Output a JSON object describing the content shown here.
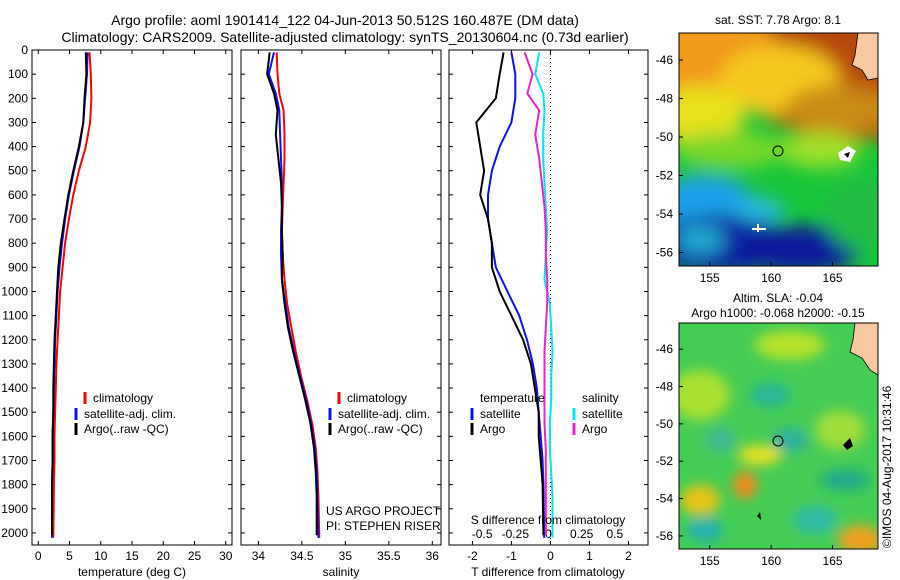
{
  "header": {
    "title_line1": "Argo profile: aoml 1901414_122 04-Jun-2013 50.512S 160.487E (DM data)",
    "title_line2": "Climatology: CARS2009. Satellite-adjusted climatology: synTS_20130604.nc (0.73d earlier)"
  },
  "credits": {
    "project": "US ARGO PROJECT",
    "pi": "PI: STEPHEN RISER",
    "stamp": "©IMOS 04-Aug-2017 10:31:46"
  },
  "colors": {
    "climatology": "#ff0000",
    "satellite": "#1010ee",
    "argo": "#000000",
    "s_satellite": "#00e5ee",
    "s_argo": "#ee22cc"
  },
  "chart_data": [
    {
      "type": "line",
      "id": "temperature",
      "xlabel": "temperature (deg C)",
      "ylabel": "",
      "xlim": [
        -1,
        31
      ],
      "ylim": [
        2050,
        0
      ],
      "xticks": [
        "0",
        "5",
        "10",
        "15",
        "20",
        "25",
        "30"
      ],
      "yticks": [
        "0",
        "100",
        "200",
        "300",
        "400",
        "500",
        "600",
        "700",
        "800",
        "900",
        "1000",
        "1100",
        "1200",
        "1300",
        "1400",
        "1500",
        "1600",
        "1700",
        "1800",
        "1900",
        "2000"
      ],
      "legend": [
        "climatology",
        "satellite-adj. clim.",
        "Argo(..raw -QC)"
      ],
      "series": [
        {
          "name": "climatology",
          "color": "#ff0000",
          "x": [
            8.2,
            8.4,
            8.5,
            8.3,
            7.6,
            6.5,
            5.6,
            4.9,
            4.3,
            3.9,
            3.5,
            3.3,
            3.1,
            2.9,
            2.8,
            2.7,
            2.6,
            2.6,
            2.5,
            2.4
          ],
          "y": [
            10,
            100,
            200,
            300,
            400,
            500,
            600,
            700,
            800,
            900,
            1000,
            1100,
            1200,
            1300,
            1400,
            1500,
            1600,
            1700,
            1800,
            2020
          ]
        },
        {
          "name": "satellite-adj. clim.",
          "color": "#1010ee",
          "x": [
            7.9,
            7.8,
            7.5,
            7.2,
            6.6,
            5.7,
            4.9,
            4.3,
            3.8,
            3.4,
            3.1,
            2.9,
            2.7,
            2.6,
            2.5,
            2.4,
            2.3,
            2.3,
            2.2,
            2.2
          ],
          "y": [
            10,
            100,
            200,
            300,
            400,
            500,
            600,
            700,
            800,
            900,
            1000,
            1100,
            1200,
            1300,
            1400,
            1500,
            1600,
            1700,
            1800,
            2020
          ]
        },
        {
          "name": "Argo(..raw -QC)",
          "color": "#000000",
          "x": [
            7.6,
            7.7,
            7.4,
            7.2,
            6.5,
            5.6,
            4.8,
            4.2,
            3.6,
            3.2,
            3.0,
            2.8,
            2.6,
            2.5,
            2.4,
            2.4,
            2.3,
            2.3,
            2.2,
            2.2
          ],
          "y": [
            10,
            100,
            200,
            300,
            400,
            500,
            600,
            700,
            800,
            900,
            1000,
            1100,
            1200,
            1300,
            1400,
            1500,
            1600,
            1700,
            1800,
            2010
          ]
        }
      ]
    },
    {
      "type": "line",
      "id": "salinity",
      "xlabel": "salinity",
      "xlim": [
        33.8,
        36.1
      ],
      "ylim": [
        2050,
        0
      ],
      "xticks": [
        "34",
        "34.5",
        "35",
        "35.5",
        "36"
      ],
      "legend": [
        "climatology",
        "satellite-adj. clim.",
        "Argo(..raw -QC)"
      ],
      "series": [
        {
          "name": "climatology",
          "color": "#ff0000",
          "x": [
            34.21,
            34.22,
            34.24,
            34.29,
            34.3,
            34.3,
            34.29,
            34.28,
            34.27,
            34.28,
            34.3,
            34.33,
            34.38,
            34.43,
            34.49,
            34.56,
            34.62,
            34.66,
            34.68,
            34.69,
            34.7
          ],
          "y": [
            10,
            100,
            180,
            250,
            350,
            450,
            550,
            650,
            750,
            850,
            950,
            1050,
            1150,
            1250,
            1350,
            1450,
            1550,
            1650,
            1750,
            1850,
            2020
          ]
        },
        {
          "name": "satellite-adj. clim.",
          "color": "#1010ee",
          "x": [
            34.18,
            34.12,
            34.2,
            34.24,
            34.25,
            34.26,
            34.27,
            34.27,
            34.26,
            34.26,
            34.27,
            34.31,
            34.35,
            34.41,
            34.48,
            34.55,
            34.61,
            34.65,
            34.67,
            34.68,
            34.69
          ],
          "y": [
            10,
            100,
            180,
            250,
            350,
            450,
            550,
            650,
            750,
            850,
            950,
            1050,
            1150,
            1250,
            1350,
            1450,
            1550,
            1650,
            1750,
            1850,
            2020
          ]
        },
        {
          "name": "Argo(..raw -QC)",
          "color": "#000000",
          "x": [
            34.13,
            34.1,
            34.18,
            34.22,
            34.2,
            34.23,
            34.26,
            34.27,
            34.27,
            34.28,
            34.27,
            34.3,
            34.34,
            34.4,
            34.47,
            34.54,
            34.6,
            34.64,
            34.66,
            34.67,
            34.67
          ],
          "y": [
            10,
            100,
            180,
            250,
            350,
            450,
            550,
            650,
            750,
            850,
            950,
            1050,
            1150,
            1250,
            1350,
            1450,
            1550,
            1650,
            1750,
            1850,
            2010
          ]
        }
      ]
    },
    {
      "type": "line",
      "id": "differences",
      "xlabel": "T difference from climatology",
      "xlabel_top": "S difference from climatology",
      "xlim": [
        -2.6,
        2.5
      ],
      "s_xlim": [
        -0.75,
        0.75
      ],
      "ylim": [
        2050,
        0
      ],
      "xticks": [
        "-2",
        "-1",
        "0",
        "1",
        "2"
      ],
      "s_xticks": [
        "-0.5",
        "-0.25",
        "0",
        "0.25",
        "0.5"
      ],
      "legend_t_title": "temperature",
      "legend_s_title": "salinity",
      "legend": [
        "satellite",
        "Argo",
        "satellite",
        "Argo"
      ],
      "series": [
        {
          "name": "satellite",
          "kind": "T",
          "color": "#1010ee",
          "x": [
            -1.0,
            -0.9,
            -0.9,
            -1.0,
            -1.3,
            -1.5,
            -1.6,
            -1.6,
            -1.5,
            -1.4,
            -1.1,
            -0.8,
            -0.6,
            -0.45,
            -0.35,
            -0.3,
            -0.25,
            -0.2,
            -0.18,
            -0.16
          ],
          "y": [
            10,
            100,
            200,
            300,
            400,
            500,
            600,
            700,
            800,
            900,
            1000,
            1100,
            1200,
            1300,
            1400,
            1500,
            1600,
            1700,
            1800,
            2020
          ]
        },
        {
          "name": "Argo",
          "kind": "T",
          "color": "#000000",
          "x": [
            -1.2,
            -1.3,
            -1.4,
            -1.9,
            -1.8,
            -1.7,
            -1.8,
            -1.6,
            -1.5,
            -1.5,
            -1.3,
            -1.0,
            -0.7,
            -0.5,
            -0.4,
            -0.3,
            -0.3,
            -0.25,
            -0.2,
            -0.18
          ],
          "y": [
            10,
            100,
            200,
            300,
            400,
            500,
            600,
            700,
            800,
            900,
            1000,
            1100,
            1200,
            1300,
            1400,
            1500,
            1600,
            1700,
            1800,
            2010
          ]
        },
        {
          "name": "satellite",
          "kind": "S",
          "color": "#00e5ee",
          "x": [
            -0.07,
            -0.1,
            -0.04,
            -0.03,
            -0.04,
            -0.04,
            -0.03,
            -0.02,
            -0.01,
            -0.02,
            -0.03,
            0.01,
            0.02,
            0.03,
            0.02,
            0.02,
            0.01,
            0.01,
            0.02,
            0.03,
            0.03
          ],
          "y": [
            10,
            100,
            180,
            250,
            350,
            450,
            550,
            650,
            750,
            850,
            950,
            1050,
            1150,
            1250,
            1350,
            1450,
            1550,
            1650,
            1750,
            1850,
            2020
          ]
        },
        {
          "name": "Argo",
          "kind": "S",
          "color": "#ee22cc",
          "x": [
            -0.18,
            -0.12,
            -0.16,
            -0.07,
            -0.1,
            -0.07,
            -0.05,
            -0.03,
            -0.02,
            -0.02,
            -0.01,
            -0.01,
            -0.02,
            -0.03,
            -0.03,
            -0.03,
            -0.03,
            -0.02,
            -0.02,
            -0.02,
            -0.02
          ],
          "y": [
            10,
            100,
            180,
            250,
            350,
            450,
            550,
            650,
            750,
            850,
            950,
            1050,
            1150,
            1250,
            1350,
            1450,
            1550,
            1650,
            1750,
            1850,
            2010
          ]
        }
      ]
    },
    {
      "type": "heatmap",
      "id": "sst_map",
      "title": "sat. SST: 7.78 Argo: 8.1",
      "xlim": [
        152.5,
        168.7
      ],
      "ylim": [
        -56.7,
        -44.6
      ],
      "xticks": [
        "155",
        "160",
        "165"
      ],
      "yticks": [
        "-46",
        "-48",
        "-50",
        "-52",
        "-54",
        "-56"
      ],
      "marker": {
        "lon": 160.487,
        "lat": -50.512
      }
    },
    {
      "type": "heatmap",
      "id": "sla_map",
      "title": "Altim. SLA: -0.04",
      "subtitle": "Argo h1000: -0.068 h2000: -0.15",
      "xlim": [
        152.5,
        168.7
      ],
      "ylim": [
        -56.7,
        -44.6
      ],
      "xticks": [
        "155",
        "160",
        "165"
      ],
      "yticks": [
        "-46",
        "-48",
        "-50",
        "-52",
        "-54",
        "-56"
      ],
      "marker": {
        "lon": 160.487,
        "lat": -50.512
      }
    }
  ]
}
